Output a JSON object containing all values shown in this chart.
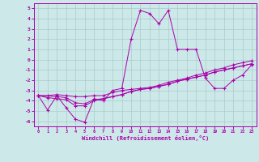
{
  "title": "",
  "xlabel": "Windchill (Refroidissement éolien,°C)",
  "background_color": "#cce8e8",
  "line_color": "#aa00aa",
  "grid_color": "#aacccc",
  "xlim": [
    -0.5,
    23.5
  ],
  "ylim": [
    -6.5,
    5.5
  ],
  "yticks": [
    5,
    4,
    3,
    2,
    1,
    0,
    -1,
    -2,
    -3,
    -4,
    -5,
    -6
  ],
  "xticks": [
    0,
    1,
    2,
    3,
    4,
    5,
    6,
    7,
    8,
    9,
    10,
    11,
    12,
    13,
    14,
    15,
    16,
    17,
    18,
    19,
    20,
    21,
    22,
    23
  ],
  "line1_x": [
    0,
    1,
    2,
    3,
    4,
    5,
    6,
    7,
    8,
    9,
    10,
    11,
    12,
    13,
    14,
    15,
    16,
    17,
    18,
    19,
    20,
    21,
    22,
    23
  ],
  "line1_y": [
    -3.5,
    -4.9,
    -3.5,
    -4.7,
    -5.8,
    -6.1,
    -3.8,
    -4.0,
    -3.0,
    -2.8,
    2.0,
    4.8,
    4.5,
    3.5,
    4.8,
    1.0,
    1.0,
    1.0,
    -1.8,
    -2.8,
    -2.8,
    -2.0,
    -1.5,
    -0.5
  ],
  "line2_x": [
    0,
    1,
    2,
    3,
    4,
    5,
    6,
    7,
    8,
    9,
    10,
    11,
    12,
    13,
    14,
    15,
    16,
    17,
    18,
    19,
    20,
    21,
    22,
    23
  ],
  "line2_y": [
    -3.5,
    -3.5,
    -3.4,
    -3.5,
    -3.6,
    -3.6,
    -3.5,
    -3.5,
    -3.2,
    -3.0,
    -2.9,
    -2.8,
    -2.7,
    -2.5,
    -2.2,
    -2.0,
    -1.8,
    -1.5,
    -1.3,
    -1.0,
    -0.8,
    -0.5,
    -0.3,
    -0.1
  ],
  "line3_x": [
    0,
    2,
    3,
    4,
    5,
    6,
    7,
    8,
    9,
    10,
    11,
    12,
    13,
    14,
    15,
    16,
    17,
    18,
    19,
    20,
    21,
    22,
    23
  ],
  "line3_y": [
    -3.5,
    -3.6,
    -3.7,
    -4.2,
    -4.3,
    -3.9,
    -3.8,
    -3.6,
    -3.4,
    -3.1,
    -2.9,
    -2.8,
    -2.6,
    -2.4,
    -2.1,
    -1.9,
    -1.7,
    -1.5,
    -1.2,
    -1.0,
    -0.8,
    -0.6,
    -0.4
  ],
  "line4_x": [
    0,
    1,
    2,
    3,
    4,
    5,
    6,
    7,
    8,
    9,
    10,
    11,
    12,
    13,
    14,
    15,
    16,
    17,
    18,
    19,
    20,
    21,
    22,
    23
  ],
  "line4_y": [
    -3.5,
    -3.7,
    -3.8,
    -3.9,
    -4.5,
    -4.5,
    -4.0,
    -3.8,
    -3.6,
    -3.4,
    -3.1,
    -2.9,
    -2.8,
    -2.6,
    -2.4,
    -2.1,
    -1.9,
    -1.7,
    -1.5,
    -1.2,
    -1.0,
    -0.8,
    -0.6,
    -0.4
  ]
}
